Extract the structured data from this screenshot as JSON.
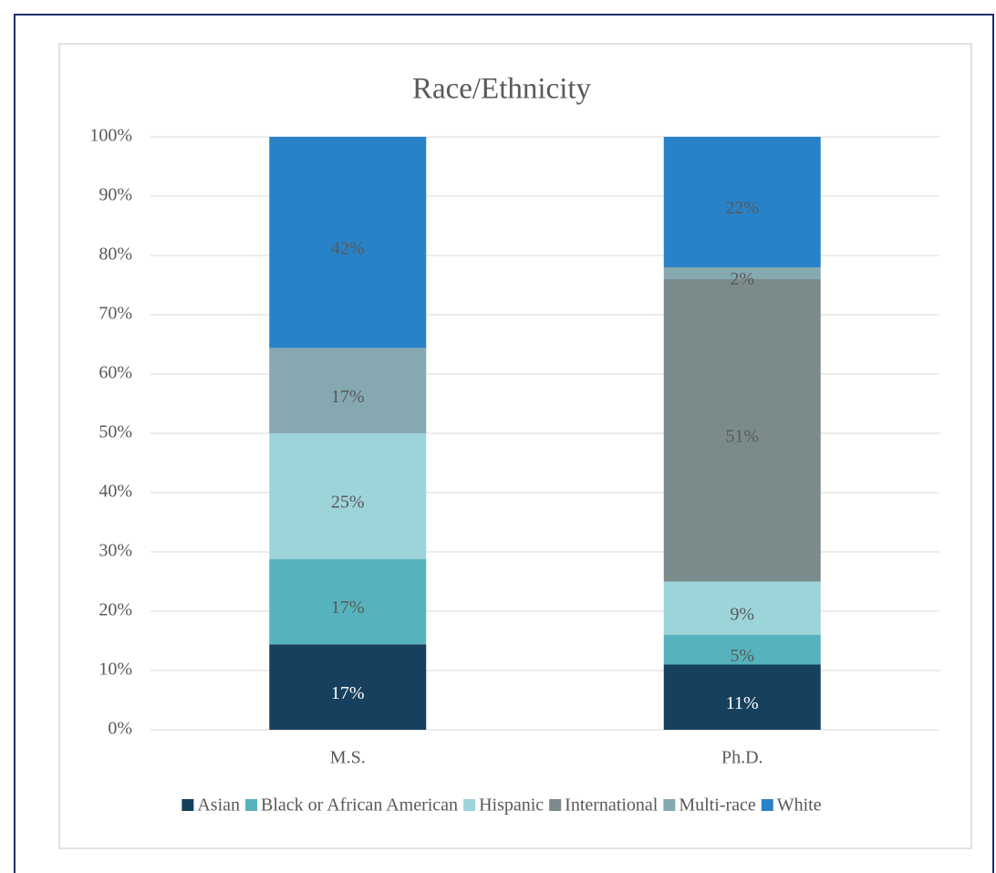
{
  "chart_data": {
    "type": "bar",
    "stack": "percent",
    "title": "Race/Ethnicity",
    "categories": [
      "M.S.",
      "Ph.D."
    ],
    "series": [
      {
        "name": "Asian",
        "color": "#17405e",
        "values": [
          17,
          11
        ],
        "value_labels": [
          "17%",
          "11%"
        ]
      },
      {
        "name": "Black or African American",
        "color": "#56b3bd",
        "values": [
          17,
          5
        ],
        "value_labels": [
          "17%",
          "5%"
        ]
      },
      {
        "name": "Hispanic",
        "color": "#9dd4da",
        "values": [
          25,
          9
        ],
        "value_labels": [
          "25%",
          "9%"
        ]
      },
      {
        "name": "International",
        "color": "#7b8b8b",
        "values": [
          0,
          51
        ],
        "value_labels": [
          null,
          "51%"
        ]
      },
      {
        "name": "Multi-race",
        "color": "#86a8b1",
        "values": [
          17,
          2
        ],
        "value_labels": [
          "17%",
          "2%"
        ]
      },
      {
        "name": "White",
        "color": "#2882c8",
        "values": [
          42,
          22
        ],
        "value_labels": [
          "42%",
          "22%"
        ]
      }
    ],
    "ylim": [
      0,
      100
    ],
    "yticks": [
      {
        "value": 0,
        "label": "0%"
      },
      {
        "value": 10,
        "label": "10%"
      },
      {
        "value": 20,
        "label": "20%"
      },
      {
        "value": 30,
        "label": "30%"
      },
      {
        "value": 40,
        "label": "40%"
      },
      {
        "value": 50,
        "label": "50%"
      },
      {
        "value": 60,
        "label": "60%"
      },
      {
        "value": 70,
        "label": "70%"
      },
      {
        "value": 80,
        "label": "80%"
      },
      {
        "value": 90,
        "label": "90%"
      },
      {
        "value": 100,
        "label": "100%"
      }
    ],
    "grid": true,
    "legend": "bottom"
  }
}
